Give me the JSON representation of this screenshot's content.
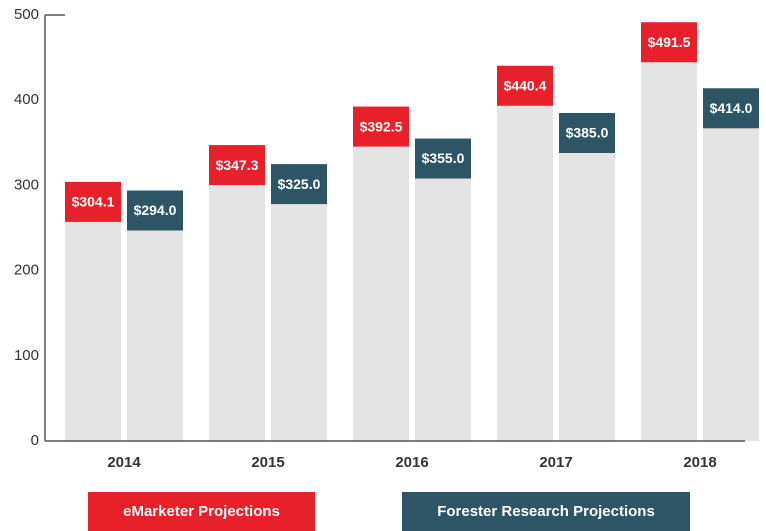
{
  "chart_data": {
    "type": "bar",
    "categories": [
      "2014",
      "2015",
      "2016",
      "2017",
      "2018"
    ],
    "series": [
      {
        "name": "eMarketer Projections",
        "color": "#e8202a",
        "values": [
          304.1,
          347.3,
          392.5,
          440.4,
          491.5
        ],
        "value_labels": [
          "$304.1",
          "$347.3",
          "$392.5",
          "$440.4",
          "$491.5"
        ]
      },
      {
        "name": "Forester Research Projections",
        "color": "#2d5566",
        "values": [
          294.0,
          325.0,
          355.0,
          385.0,
          414.0
        ],
        "value_labels": [
          "$294.0",
          "$325.0",
          "$355.0",
          "$385.0",
          "$414.0"
        ]
      }
    ],
    "bar_color": "#e4e4e4",
    "ylim": [
      0,
      500
    ],
    "yticks": [
      0,
      100,
      200,
      300,
      400,
      500
    ],
    "grid": false
  }
}
